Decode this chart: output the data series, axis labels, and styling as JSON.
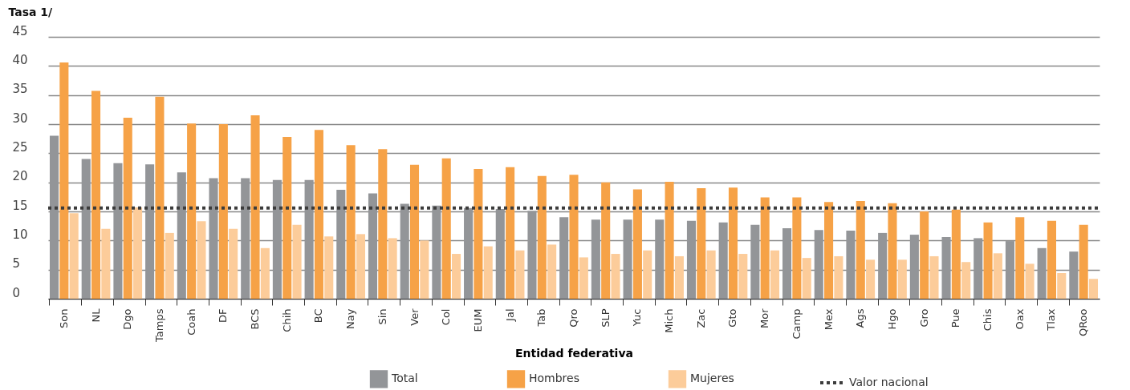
{
  "chart_data": {
    "type": "bar",
    "ylabel": "Tasa 1/",
    "xlabel": "Entidad federativa",
    "categories": [
      "Son",
      "NL",
      "Dgo",
      "Tamps",
      "Coah",
      "DF",
      "BCS",
      "Chih",
      "BC",
      "Nay",
      "Sin",
      "Ver",
      "Col",
      "EUM",
      "Jal",
      "Tab",
      "Qro",
      "SLP",
      "Yuc",
      "Mich",
      "Zac",
      "Gto",
      "Mor",
      "Camp",
      "Mex",
      "Ags",
      "Hgo",
      "Gro",
      "Pue",
      "Chis",
      "Oax",
      "Tlax",
      "QRoo"
    ],
    "series": [
      {
        "name": "Total",
        "color": "#939598",
        "values": [
          28.0,
          24.0,
          23.3,
          23.1,
          21.7,
          20.7,
          20.7,
          20.4,
          20.4,
          18.7,
          18.1,
          16.3,
          16.0,
          15.6,
          15.4,
          15.1,
          14.0,
          13.6,
          13.6,
          13.6,
          13.4,
          13.1,
          12.7,
          12.1,
          11.8,
          11.7,
          11.3,
          11.0,
          10.6,
          10.4,
          9.9,
          8.7,
          8.1
        ]
      },
      {
        "name": "Hombres",
        "color": "#f6a247",
        "values": [
          40.6,
          35.7,
          31.1,
          34.7,
          30.1,
          30.0,
          31.5,
          27.8,
          29.0,
          26.4,
          25.7,
          23.0,
          24.1,
          22.3,
          22.6,
          21.1,
          21.3,
          20.0,
          18.8,
          20.1,
          19.0,
          19.1,
          17.4,
          17.4,
          16.6,
          16.8,
          16.4,
          15.0,
          15.3,
          13.1,
          14.0,
          13.4,
          12.7
        ]
      },
      {
        "name": "Mujeres",
        "color": "#fccc9a",
        "values": [
          14.7,
          12.0,
          15.7,
          11.3,
          13.3,
          12.0,
          8.7,
          12.7,
          10.7,
          11.1,
          10.4,
          10.0,
          7.7,
          9.0,
          8.3,
          9.3,
          7.1,
          7.7,
          8.3,
          7.3,
          8.3,
          7.7,
          8.3,
          7.0,
          7.3,
          6.7,
          6.7,
          7.3,
          6.3,
          7.8,
          6.0,
          4.4,
          3.4
        ]
      }
    ],
    "ylim": [
      0,
      45
    ],
    "yticks": [
      0,
      5,
      10,
      15,
      20,
      25,
      30,
      35,
      40,
      45
    ],
    "grid": "y",
    "legend": "bottom",
    "ref_lines": [
      {
        "axis": "y",
        "value": 15.6,
        "label": "Valor nacional",
        "color": "#3c3c3c",
        "line_style": "dotted"
      }
    ]
  }
}
